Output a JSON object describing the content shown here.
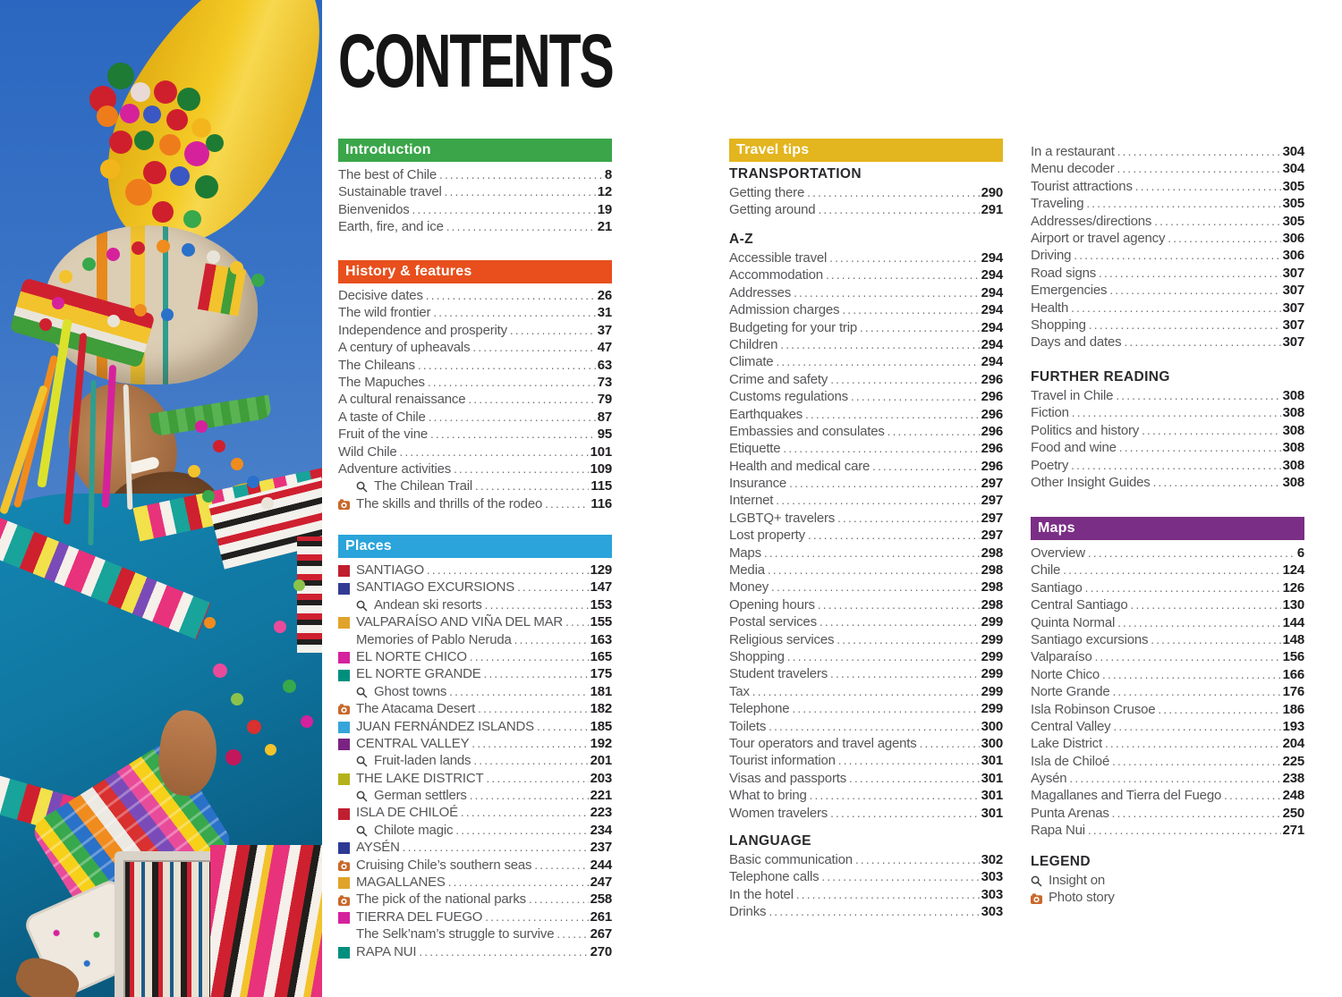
{
  "title": "CONTENTS",
  "intro": {
    "label": "Introduction",
    "color": "#3aa649",
    "entries": [
      {
        "label": "The best of Chile",
        "page": "8"
      },
      {
        "label": "Sustainable travel",
        "page": "12"
      },
      {
        "label": "Bienvenidos",
        "page": "19"
      },
      {
        "label": "Earth, fire, and ice",
        "page": "21"
      }
    ]
  },
  "history": {
    "label": "History & features",
    "color": "#e84f1d",
    "entries": [
      {
        "label": "Decisive dates",
        "page": "26"
      },
      {
        "label": "The wild frontier",
        "page": "31"
      },
      {
        "label": "Independence and prosperity",
        "page": "37"
      },
      {
        "label": "A century of upheavals",
        "page": "47"
      },
      {
        "label": "The Chileans",
        "page": "63"
      },
      {
        "label": "The Mapuches",
        "page": "73"
      },
      {
        "label": "A cultural renaissance",
        "page": "79"
      },
      {
        "label": "A taste of Chile",
        "page": "87"
      },
      {
        "label": "Fruit of the vine",
        "page": "95"
      },
      {
        "label": "Wild Chile",
        "page": "101"
      },
      {
        "label": "Adventure activities",
        "page": "109"
      },
      {
        "icon": "magnifier",
        "indent": 1,
        "label": "The Chilean Trail",
        "page": "115"
      },
      {
        "icon": "camera",
        "label": "The skills and thrills of the rodeo",
        "page": "116"
      }
    ]
  },
  "places": {
    "label": "Places",
    "color": "#2aa4da",
    "entries": [
      {
        "icon": "swatch",
        "color": "#c01f2f",
        "label": "SANTIAGO",
        "page": "129"
      },
      {
        "icon": "swatch",
        "color": "#323b94",
        "label": "SANTIAGO EXCURSIONS",
        "page": "147"
      },
      {
        "icon": "magnifier",
        "indent": 1,
        "label": "Andean ski resorts",
        "page": "153"
      },
      {
        "icon": "swatch",
        "color": "#e0a32a",
        "label": "VALPARAÍSO AND VIÑA DEL MAR",
        "page": "155"
      },
      {
        "icon": "spacer",
        "label": "Memories of Pablo Neruda",
        "page": "163"
      },
      {
        "icon": "swatch",
        "color": "#d6219c",
        "label": "EL NORTE CHICO",
        "page": "165"
      },
      {
        "icon": "swatch",
        "color": "#008f7d",
        "label": "EL NORTE GRANDE",
        "page": "175"
      },
      {
        "icon": "magnifier",
        "indent": 1,
        "label": "Ghost towns",
        "page": "181"
      },
      {
        "icon": "camera",
        "label": "The Atacama Desert",
        "page": "182"
      },
      {
        "icon": "swatch",
        "color": "#36a5d9",
        "label": "JUAN FERNÁNDEZ ISLANDS",
        "page": "185"
      },
      {
        "icon": "swatch",
        "color": "#7b2382",
        "label": "CENTRAL VALLEY",
        "page": "192"
      },
      {
        "icon": "magnifier",
        "indent": 1,
        "label": "Fruit-laden lands",
        "page": "201"
      },
      {
        "icon": "swatch",
        "color": "#b4b21c",
        "label": "THE LAKE DISTRICT",
        "page": "203"
      },
      {
        "icon": "magnifier",
        "indent": 1,
        "label": "German settlers",
        "page": "221"
      },
      {
        "icon": "swatch",
        "color": "#c01f2f",
        "label": "ISLA DE CHILOÉ",
        "page": "223"
      },
      {
        "icon": "magnifier",
        "indent": 1,
        "label": "Chilote magic",
        "page": "234"
      },
      {
        "icon": "swatch",
        "color": "#2c3a94",
        "label": "AYSÉN",
        "page": "237"
      },
      {
        "icon": "camera",
        "label": "Cruising Chile’s southern seas",
        "page": "244"
      },
      {
        "icon": "swatch",
        "color": "#e0a32a",
        "label": "MAGALLANES",
        "page": "247"
      },
      {
        "icon": "camera",
        "label": "The pick of the national parks",
        "page": "258"
      },
      {
        "icon": "swatch",
        "color": "#d6219c",
        "label": "TIERRA DEL FUEGO",
        "page": "261"
      },
      {
        "icon": "spacer",
        "label": "The Selk’nam’s struggle to survive",
        "page": "267"
      },
      {
        "icon": "swatch",
        "color": "#008f7d",
        "label": "RAPA NUI",
        "page": "270"
      }
    ]
  },
  "travel_tips": {
    "label": "Travel tips",
    "color": "#e3b51e",
    "subsections": [
      {
        "heading": "TRANSPORTATION",
        "entries": [
          {
            "label": "Getting there",
            "page": "290"
          },
          {
            "label": "Getting around",
            "page": "291"
          }
        ]
      },
      {
        "heading": "A-Z",
        "entries": [
          {
            "label": "Accessible travel",
            "page": "294"
          },
          {
            "label": "Accommodation",
            "page": "294"
          },
          {
            "label": "Addresses",
            "page": "294"
          },
          {
            "label": "Admission charges",
            "page": "294"
          },
          {
            "label": "Budgeting for your trip",
            "page": "294"
          },
          {
            "label": "Children",
            "page": "294"
          },
          {
            "label": "Climate",
            "page": "294"
          },
          {
            "label": "Crime and safety",
            "page": "296"
          },
          {
            "label": "Customs regulations",
            "page": "296"
          },
          {
            "label": "Earthquakes",
            "page": "296"
          },
          {
            "label": "Embassies and consulates",
            "page": "296"
          },
          {
            "label": "Etiquette",
            "page": "296"
          },
          {
            "label": "Health and medical care",
            "page": "296"
          },
          {
            "label": "Insurance",
            "page": "297"
          },
          {
            "label": "Internet",
            "page": "297"
          },
          {
            "label": "LGBTQ+ travelers",
            "page": "297"
          },
          {
            "label": "Lost property",
            "page": "297"
          },
          {
            "label": "Maps",
            "page": "298"
          },
          {
            "label": "Media",
            "page": "298"
          },
          {
            "label": "Money",
            "page": "298"
          },
          {
            "label": "Opening hours",
            "page": "298"
          },
          {
            "label": "Postal services",
            "page": "299"
          },
          {
            "label": "Religious services",
            "page": "299"
          },
          {
            "label": "Shopping",
            "page": "299"
          },
          {
            "label": "Student travelers",
            "page": "299"
          },
          {
            "label": "Tax",
            "page": "299"
          },
          {
            "label": "Telephone",
            "page": "299"
          },
          {
            "label": "Toilets",
            "page": "300"
          },
          {
            "label": "Tour operators and travel agents",
            "page": "300"
          },
          {
            "label": "Tourist information",
            "page": "301"
          },
          {
            "label": "Visas and passports",
            "page": "301"
          },
          {
            "label": "What to bring",
            "page": "301"
          },
          {
            "label": "Women travelers",
            "page": "301"
          }
        ]
      },
      {
        "heading": "LANGUAGE",
        "entries": [
          {
            "label": "Basic communication",
            "page": "302"
          },
          {
            "label": "Telephone calls",
            "page": "303"
          },
          {
            "label": "In the hotel",
            "page": "303"
          },
          {
            "label": "Drinks",
            "page": "303"
          }
        ]
      }
    ]
  },
  "language_more": {
    "entries": [
      {
        "label": "In a restaurant",
        "page": "304"
      },
      {
        "label": "Menu decoder",
        "page": "304"
      },
      {
        "label": "Tourist attractions",
        "page": "305"
      },
      {
        "label": "Traveling",
        "page": "305"
      },
      {
        "label": "Addresses/directions",
        "page": "305"
      },
      {
        "label": "Airport or travel agency",
        "page": "306"
      },
      {
        "label": "Driving",
        "page": "306"
      },
      {
        "label": "Road signs",
        "page": "307"
      },
      {
        "label": "Emergencies",
        "page": "307"
      },
      {
        "label": "Health",
        "page": "307"
      },
      {
        "label": "Shopping",
        "page": "307"
      },
      {
        "label": "Days and dates",
        "page": "307"
      }
    ]
  },
  "further_reading": {
    "heading": "FURTHER READING",
    "entries": [
      {
        "label": "Travel in Chile",
        "page": "308"
      },
      {
        "label": "Fiction",
        "page": "308"
      },
      {
        "label": "Politics and history",
        "page": "308"
      },
      {
        "label": "Food and wine",
        "page": "308"
      },
      {
        "label": "Poetry",
        "page": "308"
      },
      {
        "label": "Other Insight Guides",
        "page": "308"
      }
    ]
  },
  "maps": {
    "label": "Maps",
    "color": "#7b2e86",
    "entries": [
      {
        "label": "Overview",
        "page": "6"
      },
      {
        "label": "Chile",
        "page": "124"
      },
      {
        "label": "Santiago",
        "page": "126"
      },
      {
        "label": "Central Santiago",
        "page": "130"
      },
      {
        "label": "Quinta Normal",
        "page": "144"
      },
      {
        "label": "Santiago excursions",
        "page": "148"
      },
      {
        "label": "Valparaíso",
        "page": "156"
      },
      {
        "label": "Norte Chico",
        "page": "166"
      },
      {
        "label": "Norte Grande",
        "page": "176"
      },
      {
        "label": "Isla Robinson Crusoe",
        "page": "186"
      },
      {
        "label": "Central Valley",
        "page": "193"
      },
      {
        "label": "Lake District",
        "page": "204"
      },
      {
        "label": "Isla de Chiloé",
        "page": "225"
      },
      {
        "label": "Aysén",
        "page": "238"
      },
      {
        "label": "Magallanes and Tierra del Fuego",
        "page": "248"
      },
      {
        "label": "Punta Arenas",
        "page": "250"
      },
      {
        "label": "Rapa Nui",
        "page": "271"
      }
    ]
  },
  "legend": {
    "heading": "LEGEND",
    "items": [
      {
        "icon": "magnifier",
        "label": "Insight on"
      },
      {
        "icon": "camera",
        "label": "Photo story"
      }
    ]
  }
}
